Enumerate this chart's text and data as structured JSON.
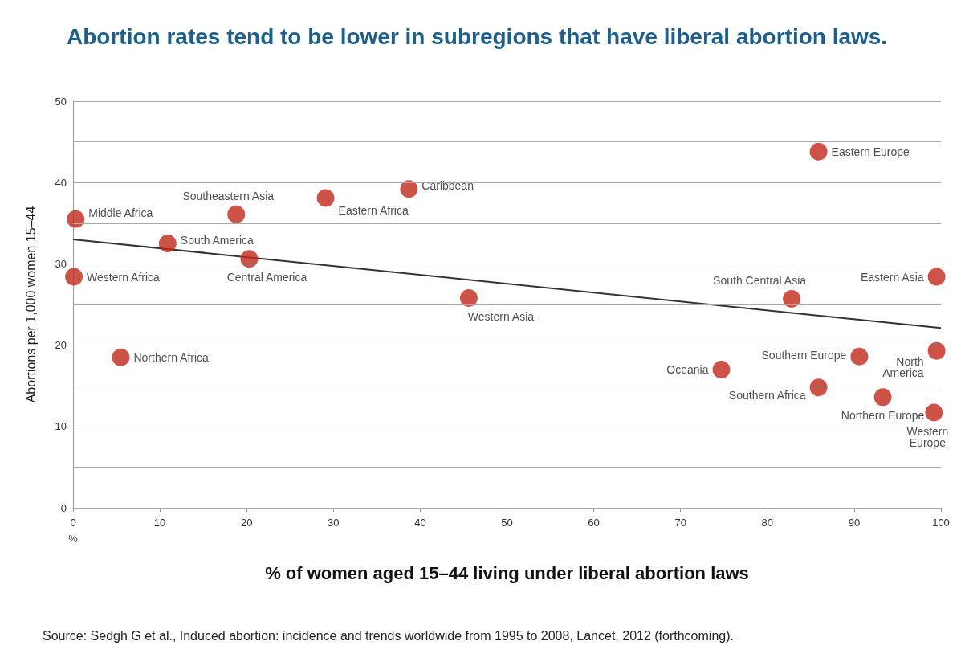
{
  "chart_data": {
    "type": "scatter",
    "title": "Abortion rates tend to be lower in subregions that have liberal abortion laws.",
    "xlabel": "% of women aged 15–44 living under liberal abortion laws",
    "ylabel": "Abortions per 1,000 women 15–44",
    "annotations": [
      "Source: Sedgh G et al., Induced abortion: incidence and trends worldwide from 1995 to 2008, Lancet, 2012 (forthcoming)."
    ],
    "xlim": [
      0,
      100
    ],
    "ylim": [
      0,
      50
    ],
    "xticks": [
      {
        "value": 0,
        "label": "0\n%"
      },
      10,
      20,
      30,
      40,
      50,
      60,
      70,
      80,
      90,
      100
    ],
    "yticks": [
      0,
      {
        "value": 5,
        "label": null
      },
      10,
      {
        "value": 15,
        "label": null
      },
      20,
      {
        "value": 25,
        "label": null
      },
      30,
      {
        "value": 35,
        "label": null
      },
      40,
      {
        "value": 45,
        "label": null
      },
      50
    ],
    "grid": "y",
    "marker": "circle",
    "series": [
      {
        "color": "#c0281c",
        "x": [
          0.3,
          0.1,
          5.5,
          10.9,
          18.8,
          20.3,
          29.1,
          38.7,
          45.6,
          74.7,
          82.8,
          85.9,
          85.9,
          90.6,
          93.3,
          99.5,
          99.5,
          99.2
        ],
        "values": [
          35.5,
          28.4,
          18.5,
          32.5,
          36.1,
          30.6,
          38.1,
          39.2,
          25.8,
          17.0,
          25.7,
          43.8,
          14.8,
          18.6,
          13.6,
          28.4,
          19.3,
          11.7
        ],
        "value_labels": [
          "Middle Africa",
          "Western Africa",
          "Northern Africa",
          "South America",
          "Southeastern Asia",
          "Central America",
          "Eastern Africa",
          "Caribbean",
          "Western Asia",
          "Oceania",
          "South Central Asia",
          "Eastern Europe",
          "Southern Africa",
          "Southern Europe",
          "Northern Europe",
          "Eastern Asia",
          "North\nAmerica",
          "Western\nEurope"
        ]
      },
      {
        "type": "line",
        "color": "#333333",
        "x": [
          0,
          100
        ],
        "values": [
          33.0,
          22.1
        ],
        "marker": "none"
      }
    ]
  }
}
